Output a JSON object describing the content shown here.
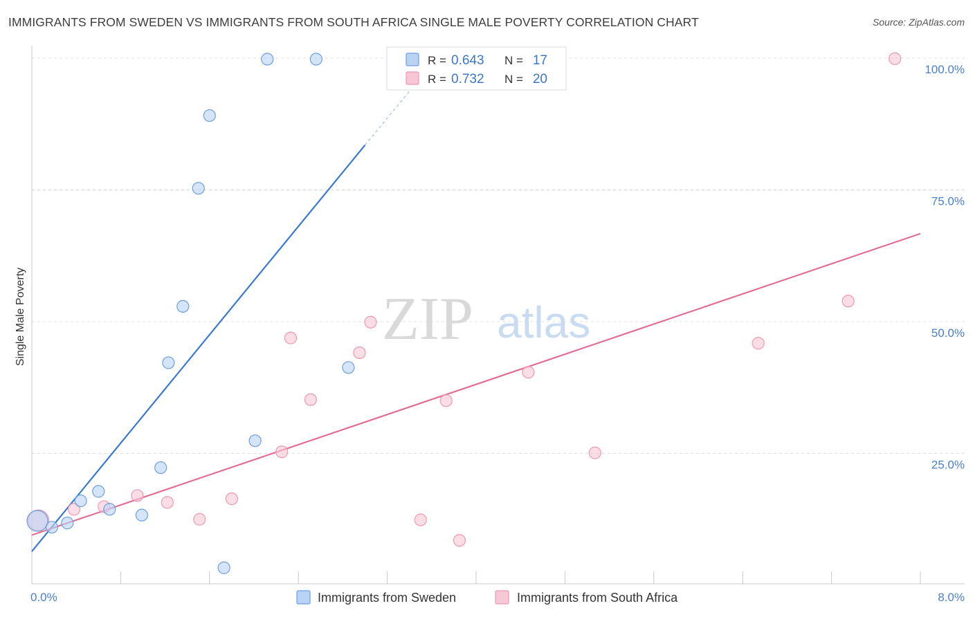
{
  "title": "IMMIGRANTS FROM SWEDEN VS IMMIGRANTS FROM SOUTH AFRICA SINGLE MALE POVERTY CORRELATION CHART",
  "source": "Source: ZipAtlas.com",
  "watermark": {
    "zip": "ZIP",
    "atlas": "atlas"
  },
  "colors": {
    "sweden_fill": "#b9d3f5",
    "sweden_stroke": "#6d9ee0",
    "sweden_line": "#3a78d0",
    "southafrica_fill": "#f8c7d6",
    "southafrica_stroke": "#ec98b3",
    "southafrica_line": "#e26d97",
    "grid": "#dcdcdc",
    "tick_text": "#4a7fc9"
  },
  "legend": {
    "r_label": "R =",
    "n_label": "N =",
    "rows": [
      {
        "r": "0.643",
        "n": "17"
      },
      {
        "r": "0.732",
        "n": "20"
      }
    ]
  },
  "chart_data": {
    "type": "scatter",
    "title": "IMMIGRANTS FROM SWEDEN VS IMMIGRANTS FROM SOUTH AFRICA SINGLE MALE POVERTY CORRELATION CHART",
    "xlabel": "",
    "ylabel": "Single Male Poverty",
    "xlim": [
      0,
      8
    ],
    "ylim": [
      0,
      100
    ],
    "x_tick_labels": [
      "0.0%",
      "8.0%"
    ],
    "y_ticks": [
      25,
      50,
      75,
      100
    ],
    "y_tick_labels": [
      "25.0%",
      "50.0%",
      "75.0%",
      "100.0%"
    ],
    "series": [
      {
        "name": "Immigrants from Sweden",
        "r": 0.643,
        "n": 17,
        "points": [
          [
            0.05,
            12.2
          ],
          [
            0.18,
            11.0
          ],
          [
            0.32,
            11.8
          ],
          [
            0.44,
            16.0
          ],
          [
            0.6,
            17.8
          ],
          [
            0.7,
            14.4
          ],
          [
            0.99,
            13.3
          ],
          [
            1.16,
            22.3
          ],
          [
            1.23,
            42.2
          ],
          [
            1.36,
            52.9
          ],
          [
            1.5,
            75.3
          ],
          [
            1.6,
            89.1
          ],
          [
            1.73,
            3.3
          ],
          [
            2.01,
            27.4
          ],
          [
            2.12,
            99.8
          ],
          [
            2.56,
            99.8
          ],
          [
            2.85,
            41.3
          ]
        ],
        "trend": {
          "x0": 0.0,
          "y0": 6.4,
          "x1": 3.0,
          "y1": 83.5,
          "dashed_to": {
            "x": 3.45,
            "y": 95.0
          }
        }
      },
      {
        "name": "Immigrants from South Africa",
        "r": 0.732,
        "n": 20,
        "points": [
          [
            0.06,
            12.3
          ],
          [
            0.38,
            14.4
          ],
          [
            0.65,
            14.9
          ],
          [
            0.95,
            17.0
          ],
          [
            1.22,
            15.7
          ],
          [
            1.51,
            12.5
          ],
          [
            1.8,
            16.4
          ],
          [
            2.25,
            25.3
          ],
          [
            2.33,
            46.9
          ],
          [
            2.51,
            35.2
          ],
          [
            2.95,
            44.1
          ],
          [
            3.05,
            49.9
          ],
          [
            3.5,
            12.4
          ],
          [
            3.73,
            35.0
          ],
          [
            3.85,
            8.5
          ],
          [
            4.47,
            40.4
          ],
          [
            5.07,
            25.1
          ],
          [
            6.54,
            45.9
          ],
          [
            7.35,
            53.9
          ],
          [
            7.77,
            99.9
          ]
        ],
        "trend": {
          "x0": 0.0,
          "y0": 9.5,
          "x1": 8.0,
          "y1": 66.7
        }
      }
    ]
  }
}
